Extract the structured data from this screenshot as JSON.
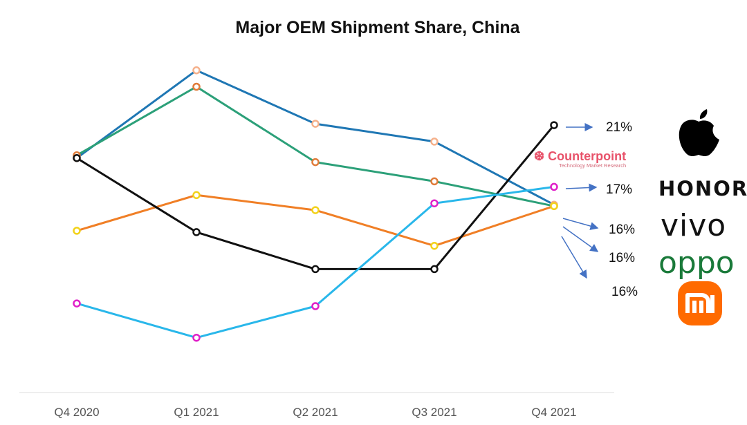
{
  "chart_data": {
    "type": "line",
    "title": "Major OEM Shipment Share, China",
    "xlabel": "",
    "ylabel": "",
    "categories": [
      "Q4 2020",
      "Q1 2021",
      "Q2 2021",
      "Q3 2021",
      "Q4 2021"
    ],
    "ylim": [
      5,
      31
    ],
    "grid": false,
    "series": [
      {
        "name": "Blue",
        "color": "#1f77b4",
        "marker_color": "#f5b08a",
        "values": [
          22.5,
          28.9,
          25.0,
          23.7,
          19.1
        ]
      },
      {
        "name": "Green",
        "color": "#2ca079",
        "marker_color": "#e07b39",
        "values": [
          22.7,
          27.7,
          22.2,
          20.8,
          19.0
        ]
      },
      {
        "name": "Orange",
        "color": "#f07f26",
        "marker_color": "#f2d21a",
        "values": [
          17.2,
          19.8,
          18.7,
          16.1,
          19.0
        ]
      },
      {
        "name": "Black",
        "color": "#111111",
        "marker_color": "#111111",
        "values": [
          22.5,
          17.1,
          14.4,
          14.4,
          24.9
        ]
      },
      {
        "name": "Light Blue",
        "color": "#29b7ea",
        "marker_color": "#e020c8",
        "values": [
          11.9,
          9.4,
          11.7,
          19.2,
          20.4
        ]
      }
    ],
    "annotations": [
      {
        "label": "21%",
        "brand": "Apple"
      },
      {
        "label": "17%",
        "brand": "HONOR"
      },
      {
        "label": "16%",
        "brand": "vivo"
      },
      {
        "label": "16%",
        "brand": "OPPO"
      },
      {
        "label": "16%",
        "brand": "mi"
      }
    ]
  },
  "brands": {
    "apple_icon": "apple-logo",
    "honor": "HONOR",
    "vivo": "vivo",
    "oppo": "oppo",
    "mi": "mi"
  },
  "watermark": {
    "name": "Counterpoint",
    "sub": "Technology Market Research"
  }
}
